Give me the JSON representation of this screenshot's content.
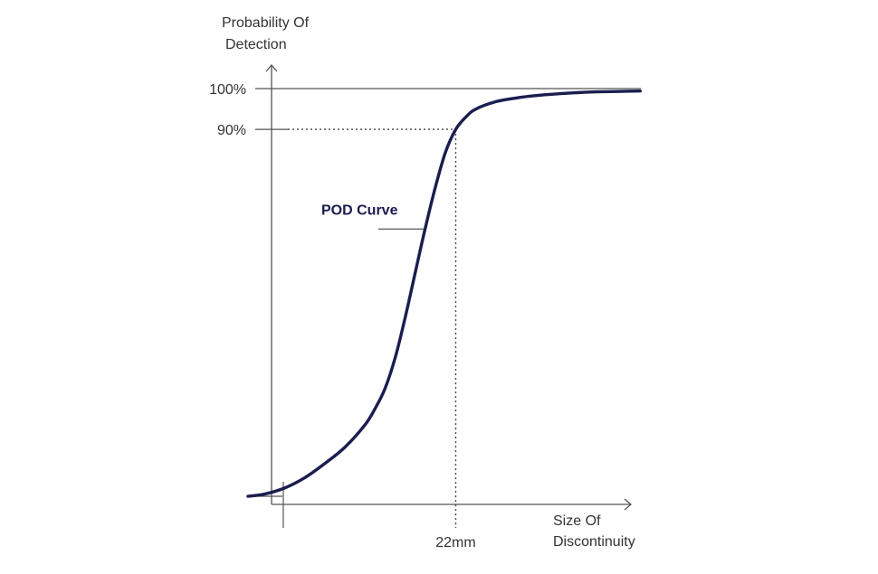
{
  "chart_data": {
    "type": "line",
    "title": "",
    "ylabel_lines": [
      "Probability Of",
      "Detection"
    ],
    "xlabel_lines": [
      "Size Of",
      "Discontinuity"
    ],
    "ylim": [
      0,
      100
    ],
    "y_ticks": [
      {
        "value": 100,
        "label": "100%"
      },
      {
        "value": 90,
        "label": "90%"
      }
    ],
    "x_ticks": [
      {
        "value": 22,
        "label": "22mm"
      }
    ],
    "series": [
      {
        "x": [
          1.4,
          3,
          5,
          7,
          9,
          11,
          13,
          14,
          15,
          16,
          17,
          18,
          19,
          20,
          21,
          22,
          23,
          24,
          26,
          28,
          30,
          32,
          34,
          36,
          38,
          40.3
        ],
        "y": [
          0,
          0.5,
          2,
          4.5,
          8,
          12,
          17.5,
          21.5,
          26.5,
          34,
          44,
          55,
          66,
          76,
          84.5,
          90,
          93,
          95,
          96.8,
          97.7,
          98.3,
          98.7,
          99,
          99.2,
          99.3,
          99.4
        ]
      }
    ],
    "annotations": [
      {
        "text": "POD Curve",
        "x": 18.8,
        "y": 66
      }
    ],
    "grid": false,
    "legend": "none",
    "colors": {
      "curve": "#1a1d4e",
      "annotation": "#1a1d4e",
      "axis": "#555555",
      "text": "#333333"
    }
  }
}
